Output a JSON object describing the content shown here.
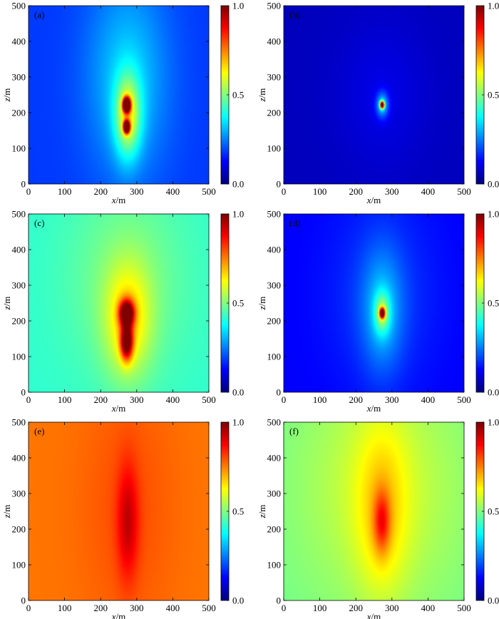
{
  "chart_data": [
    {
      "type": "heatmap",
      "panel_label": "(a)",
      "xlabel": "x/m",
      "ylabel": "z/m",
      "xlim": [
        0,
        500
      ],
      "ylim": [
        500,
        0
      ],
      "xticks": [
        "0",
        "100",
        "200",
        "300",
        "400",
        "500"
      ],
      "yticks": [
        "0",
        "100",
        "200",
        "300",
        "400",
        "500"
      ],
      "colorbar": {
        "min": 0.0,
        "max": 1.0,
        "ticks": [
          "1.0",
          "0.5",
          "0.0"
        ],
        "colormap": "jet"
      },
      "background_level": 0.18,
      "features": [
        {
          "x": 272,
          "z": 160,
          "peak": 0.9,
          "sx": 6,
          "sz": 12
        },
        {
          "x": 272,
          "z": 222,
          "peak": 1.0,
          "sx": 7,
          "sz": 14
        },
        {
          "x": 275,
          "z": 190,
          "peak": 0.35,
          "sx": 25,
          "sz": 80
        },
        {
          "x": 275,
          "z": 300,
          "peak": 0.15,
          "sx": 80,
          "sz": 200
        }
      ]
    },
    {
      "type": "heatmap",
      "panel_label": "(b)",
      "xlabel": "x/m",
      "ylabel": "z/m",
      "xlim": [
        0,
        500
      ],
      "ylim": [
        500,
        0
      ],
      "xticks": [
        "0",
        "100",
        "200",
        "300",
        "400",
        "500"
      ],
      "yticks": [
        "0",
        "100",
        "200",
        "300",
        "400",
        "500"
      ],
      "colorbar": {
        "min": 0.0,
        "max": 1.0,
        "ticks": [
          "1.0",
          "0.5",
          "0.0"
        ],
        "colormap": "jet"
      },
      "background_level": 0.06,
      "features": [
        {
          "x": 273,
          "z": 222,
          "peak": 1.0,
          "sx": 4,
          "sz": 7
        },
        {
          "x": 273,
          "z": 222,
          "peak": 0.25,
          "sx": 12,
          "sz": 25
        },
        {
          "x": 273,
          "z": 250,
          "peak": 0.04,
          "sx": 90,
          "sz": 150
        }
      ]
    },
    {
      "type": "heatmap",
      "panel_label": "(c)",
      "xlabel": "x/m",
      "ylabel": "z/m",
      "xlim": [
        0,
        500
      ],
      "ylim": [
        500,
        0
      ],
      "xticks": [
        "0",
        "100",
        "200",
        "300",
        "400",
        "500"
      ],
      "yticks": [
        "0",
        "100",
        "200",
        "300",
        "400",
        "500"
      ],
      "colorbar": {
        "min": 0.0,
        "max": 1.0,
        "ticks": [
          "1.0",
          "0.5",
          "0.0"
        ],
        "colormap": "jet"
      },
      "background_level": 0.42,
      "features": [
        {
          "x": 272,
          "z": 140,
          "peak": 0.5,
          "sx": 12,
          "sz": 35
        },
        {
          "x": 272,
          "z": 222,
          "peak": 0.55,
          "sx": 14,
          "sz": 25
        },
        {
          "x": 275,
          "z": 200,
          "peak": 0.2,
          "sx": 45,
          "sz": 110
        },
        {
          "x": 275,
          "z": 320,
          "peak": 0.08,
          "sx": 120,
          "sz": 200
        }
      ]
    },
    {
      "type": "heatmap",
      "panel_label": "(d)",
      "xlabel": "x/m",
      "ylabel": "z/m",
      "xlim": [
        0,
        500
      ],
      "ylim": [
        500,
        0
      ],
      "xticks": [
        "0",
        "100",
        "200",
        "300",
        "400",
        "500"
      ],
      "yticks": [
        "0",
        "100",
        "200",
        "300",
        "400",
        "500"
      ],
      "colorbar": {
        "min": 0.0,
        "max": 1.0,
        "ticks": [
          "1.0",
          "0.5",
          "0.0"
        ],
        "colormap": "jet"
      },
      "background_level": 0.12,
      "features": [
        {
          "x": 273,
          "z": 222,
          "peak": 0.75,
          "sx": 5,
          "sz": 10
        },
        {
          "x": 273,
          "z": 222,
          "peak": 0.25,
          "sx": 15,
          "sz": 40
        },
        {
          "x": 273,
          "z": 230,
          "peak": 0.15,
          "sx": 40,
          "sz": 120
        },
        {
          "x": 273,
          "z": 280,
          "peak": 0.06,
          "sx": 110,
          "sz": 200
        }
      ]
    },
    {
      "type": "heatmap",
      "panel_label": "(e)",
      "xlabel": "x/m",
      "ylabel": "z/m",
      "xlim": [
        0,
        500
      ],
      "ylim": [
        500,
        0
      ],
      "xticks": [
        "0",
        "100",
        "200",
        "300",
        "400",
        "500"
      ],
      "yticks": [
        "0",
        "100",
        "200",
        "300",
        "400",
        "500"
      ],
      "colorbar": {
        "min": 0.0,
        "max": 1.0,
        "ticks": [
          "1.0",
          "0.5",
          "0.0"
        ],
        "colormap": "jet"
      },
      "background_level": 0.76,
      "features": [
        {
          "x": 275,
          "z": 220,
          "peak": 0.14,
          "sx": 20,
          "sz": 110
        },
        {
          "x": 275,
          "z": 260,
          "peak": 0.04,
          "sx": 90,
          "sz": 250
        }
      ]
    },
    {
      "type": "heatmap",
      "panel_label": "(f)",
      "xlabel": "x/m",
      "ylabel": "z/m",
      "xlim": [
        0,
        500
      ],
      "ylim": [
        500,
        0
      ],
      "xticks": [
        "0",
        "100",
        "200",
        "300",
        "400",
        "500"
      ],
      "yticks": [
        "0",
        "100",
        "200",
        "300",
        "400",
        "500"
      ],
      "colorbar": {
        "min": 0.0,
        "max": 1.0,
        "ticks": [
          "1.0",
          "0.5",
          "0.0"
        ],
        "colormap": "jet"
      },
      "background_level": 0.48,
      "features": [
        {
          "x": 272,
          "z": 220,
          "peak": 0.2,
          "sx": 16,
          "sz": 60
        },
        {
          "x": 272,
          "z": 250,
          "peak": 0.12,
          "sx": 50,
          "sz": 170
        },
        {
          "x": 272,
          "z": 320,
          "peak": 0.1,
          "sx": 170,
          "sz": 260
        }
      ]
    }
  ]
}
